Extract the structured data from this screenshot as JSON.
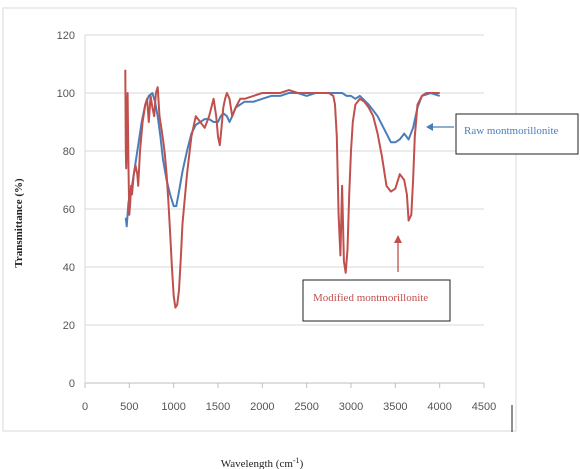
{
  "chart_data": {
    "type": "line",
    "xlabel": "Wavelength (cm",
    "xlabel_sup": "-1",
    "xlabel_tail": ")",
    "ylabel": "Transmittance (%)",
    "xlim": [
      0,
      4500
    ],
    "ylim": [
      0,
      120
    ],
    "xticks": [
      0,
      500,
      1000,
      1500,
      2000,
      2500,
      3000,
      3500,
      4000,
      4500
    ],
    "yticks": [
      0,
      20,
      40,
      60,
      80,
      100,
      120
    ],
    "grid": "horizontal",
    "series": [
      {
        "name": "Raw montmorillonite",
        "color": "#4a7ebb",
        "x": [
          460,
          470,
          490,
          510,
          530,
          560,
          600,
          640,
          680,
          720,
          760,
          790,
          820,
          850,
          880,
          920,
          960,
          1000,
          1030,
          1060,
          1100,
          1150,
          1200,
          1250,
          1300,
          1350,
          1400,
          1450,
          1500,
          1530,
          1560,
          1600,
          1630,
          1660,
          1700,
          1800,
          1900,
          2000,
          2100,
          2200,
          2300,
          2400,
          2500,
          2600,
          2700,
          2800,
          2850,
          2900,
          2950,
          3000,
          3050,
          3100,
          3200,
          3300,
          3400,
          3450,
          3500,
          3550,
          3600,
          3650,
          3700,
          3750,
          3800,
          3900,
          4000
        ],
        "y": [
          57,
          54,
          62,
          66,
          68,
          74,
          82,
          90,
          96,
          99,
          100,
          97,
          92,
          85,
          77,
          70,
          65,
          61,
          61,
          66,
          73,
          80,
          86,
          89,
          90,
          91,
          91,
          90,
          90,
          92,
          93,
          92,
          90,
          92,
          95,
          97,
          97,
          98,
          99,
          99,
          100,
          100,
          99,
          100,
          100,
          100,
          100,
          100,
          99,
          99,
          98,
          99,
          96,
          92,
          86,
          83,
          83,
          84,
          86,
          84,
          88,
          95,
          99,
          100,
          99
        ]
      },
      {
        "name": "Modified montmorillonite",
        "color": "#c0504d",
        "x": [
          455,
          460,
          465,
          470,
          480,
          490,
          500,
          510,
          520,
          530,
          550,
          570,
          590,
          600,
          620,
          650,
          680,
          700,
          720,
          740,
          760,
          780,
          800,
          820,
          840,
          860,
          880,
          900,
          920,
          940,
          960,
          980,
          1000,
          1020,
          1040,
          1060,
          1080,
          1100,
          1150,
          1200,
          1250,
          1300,
          1350,
          1400,
          1450,
          1480,
          1500,
          1520,
          1540,
          1560,
          1580,
          1600,
          1630,
          1660,
          1700,
          1750,
          1800,
          1900,
          2000,
          2100,
          2200,
          2300,
          2400,
          2500,
          2600,
          2700,
          2750,
          2800,
          2820,
          2840,
          2860,
          2880,
          2900,
          2920,
          2940,
          2960,
          2980,
          3000,
          3020,
          3050,
          3100,
          3150,
          3200,
          3250,
          3300,
          3350,
          3400,
          3450,
          3500,
          3550,
          3600,
          3630,
          3650,
          3680,
          3700,
          3720,
          3750,
          3800,
          3850,
          3900,
          4000
        ],
        "y": [
          108,
          80,
          74,
          85,
          100,
          76,
          58,
          62,
          68,
          65,
          72,
          75,
          72,
          68,
          80,
          90,
          96,
          98,
          90,
          99,
          95,
          92,
          100,
          102,
          92,
          88,
          84,
          79,
          72,
          63,
          52,
          40,
          30,
          26,
          27,
          32,
          43,
          55,
          72,
          85,
          92,
          90,
          88,
          92,
          98,
          92,
          85,
          82,
          88,
          95,
          98,
          100,
          98,
          92,
          95,
          98,
          98,
          99,
          100,
          100,
          100,
          101,
          100,
          100,
          100,
          100,
          100,
          99,
          96,
          85,
          58,
          44,
          68,
          42,
          38,
          46,
          65,
          80,
          90,
          96,
          98,
          97,
          95,
          92,
          86,
          78,
          68,
          66,
          67,
          72,
          70,
          65,
          56,
          58,
          70,
          85,
          96,
          99,
          100,
          100,
          100
        ]
      }
    ],
    "annotations": [
      {
        "text": "Raw montmorillonite",
        "series": 0
      },
      {
        "text": "Modified montmorillonite",
        "series": 1
      }
    ]
  }
}
